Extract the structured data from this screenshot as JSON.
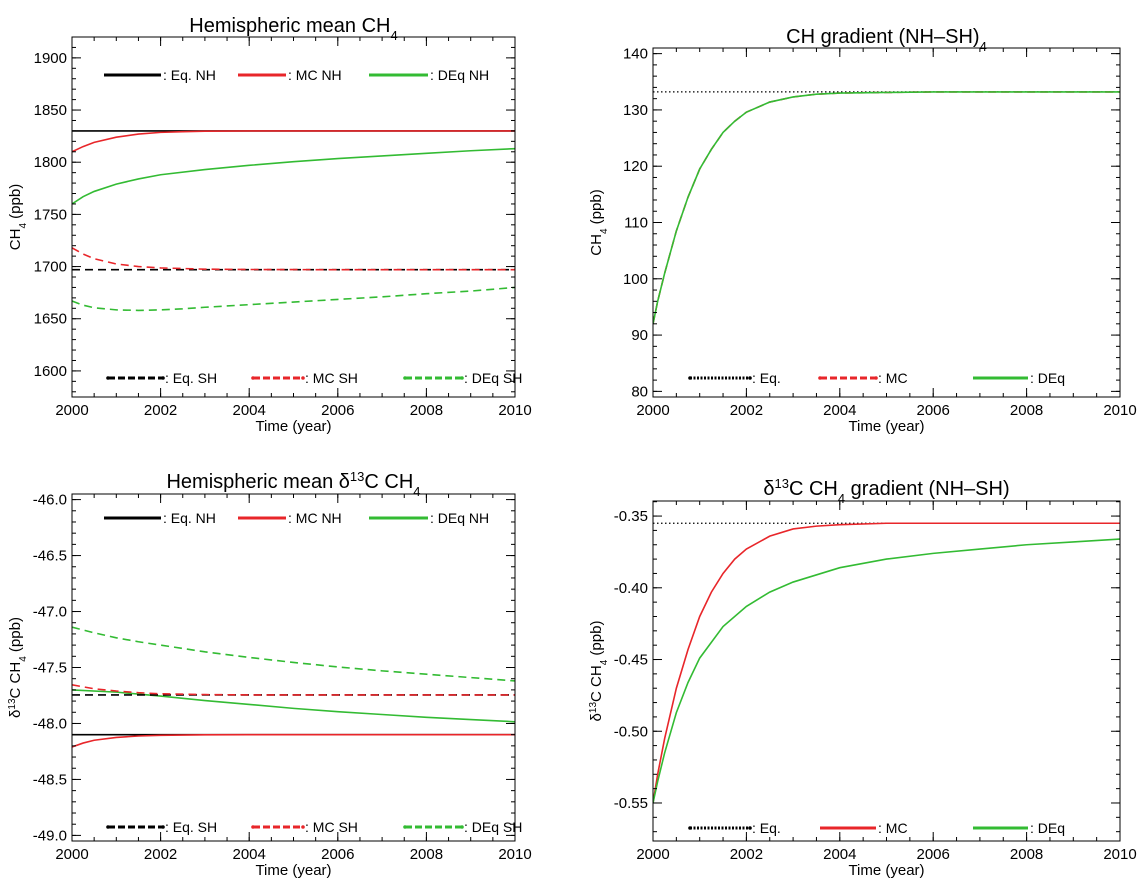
{
  "colors": {
    "eq": "#000000",
    "mc": "#e8262a",
    "deq": "#33bb33"
  },
  "chart_data": [
    {
      "type": "line",
      "title": "Hemispheric mean CH",
      "title_sub": "4",
      "xlabel": "Time (year)",
      "ylabel": "CH",
      "ylabel_sub": "4",
      "ylabel_tail": " (ppb)",
      "xlim": [
        2000,
        2010
      ],
      "ylim": [
        1575,
        1920
      ],
      "xticks": [
        2000,
        2002,
        2004,
        2006,
        2008,
        2010
      ],
      "xtick_labels": [
        "2000",
        "2002",
        "2004",
        "2006",
        "2008",
        "2010"
      ],
      "yticks": [
        1600,
        1650,
        1700,
        1750,
        1800,
        1850,
        1900
      ],
      "ytick_labels": [
        "1600",
        "1650",
        "1700",
        "1750",
        "1800",
        "1850",
        "1900"
      ],
      "series": [
        {
          "name": ": Eq. NH",
          "color": "eq",
          "dash": "solid",
          "x": [
            2000,
            2010
          ],
          "y": [
            1830,
            1830
          ]
        },
        {
          "name": ": MC NH",
          "color": "mc",
          "dash": "solid",
          "x": [
            2000,
            2000.25,
            2000.5,
            2001,
            2001.5,
            2002,
            2002.5,
            2003,
            2004,
            2005,
            2006,
            2008,
            2010
          ],
          "y": [
            1810,
            1815,
            1819,
            1824,
            1827,
            1828.6,
            1829.3,
            1829.7,
            1830,
            1830,
            1830,
            1830,
            1830
          ]
        },
        {
          "name": ": DEq NH",
          "color": "deq",
          "dash": "solid",
          "x": [
            2000,
            2000.25,
            2000.5,
            2001,
            2001.5,
            2002,
            2003,
            2004,
            2005,
            2006,
            2007,
            2008,
            2009,
            2010
          ],
          "y": [
            1760,
            1767,
            1772,
            1779,
            1784,
            1788,
            1793,
            1797,
            1800.5,
            1803.5,
            1806,
            1808.5,
            1811,
            1813
          ]
        },
        {
          "name": ": Eq. SH",
          "color": "eq",
          "dash": "dashed",
          "x": [
            2000,
            2010
          ],
          "y": [
            1697,
            1697
          ]
        },
        {
          "name": ": MC SH",
          "color": "mc",
          "dash": "dashed",
          "x": [
            2000,
            2000.25,
            2000.5,
            2001,
            2001.5,
            2002,
            2003,
            2004,
            2006,
            2008,
            2010
          ],
          "y": [
            1718,
            1712,
            1707.5,
            1702.5,
            1700,
            1698.7,
            1697.5,
            1697.2,
            1697,
            1697,
            1697
          ]
        },
        {
          "name": ": DEq SH",
          "color": "deq",
          "dash": "dashed",
          "x": [
            2000,
            2000.25,
            2000.5,
            2001,
            2001.5,
            2002,
            2002.5,
            2003,
            2004,
            2005,
            2006,
            2007,
            2008,
            2009,
            2010
          ],
          "y": [
            1667,
            1663,
            1660.5,
            1658.5,
            1658,
            1658.5,
            1659.5,
            1661,
            1663.5,
            1666,
            1668.5,
            1671,
            1674,
            1676.5,
            1680
          ]
        }
      ],
      "legend": "top and bottom rows"
    },
    {
      "type": "line",
      "title": "CH",
      "title_sub": "4",
      "title_tail": " gradient (NH–SH)",
      "xlabel": "Time (year)",
      "ylabel": "CH",
      "ylabel_sub": "4",
      "ylabel_tail": " (ppb)",
      "xlim": [
        2000,
        2010
      ],
      "ylim": [
        79,
        141
      ],
      "xticks": [
        2000,
        2002,
        2004,
        2006,
        2008,
        2010
      ],
      "xtick_labels": [
        "2000",
        "2002",
        "2004",
        "2006",
        "2008",
        "2010"
      ],
      "yticks": [
        80,
        90,
        100,
        110,
        120,
        130,
        140
      ],
      "ytick_labels": [
        "80",
        "90",
        "100",
        "110",
        "120",
        "130",
        "140"
      ],
      "series": [
        {
          "name": ": Eq.",
          "color": "eq",
          "dash": "dotted",
          "x": [
            2000,
            2010
          ],
          "y": [
            133.2,
            133.2
          ]
        },
        {
          "name": ": MC",
          "color": "mc",
          "dash": "dashed",
          "x": [
            2000,
            2000.1,
            2000.25,
            2000.5,
            2000.75,
            2001,
            2001.25,
            2001.5,
            2001.75,
            2002,
            2002.5,
            2003,
            2003.5,
            2004,
            2005,
            2006,
            2008,
            2010
          ],
          "y": [
            92,
            96,
            101,
            108.5,
            114.5,
            119.5,
            123,
            126,
            128,
            129.6,
            131.4,
            132.3,
            132.8,
            133,
            133.1,
            133.2,
            133.2,
            133.2
          ]
        },
        {
          "name": ": DEq",
          "color": "deq",
          "dash": "solid",
          "x": [
            2000,
            2000.1,
            2000.25,
            2000.5,
            2000.75,
            2001,
            2001.25,
            2001.5,
            2001.75,
            2002,
            2002.5,
            2003,
            2003.5,
            2004,
            2005,
            2006,
            2008,
            2010
          ],
          "y": [
            92,
            96,
            101,
            108.5,
            114.5,
            119.5,
            123,
            126,
            128,
            129.6,
            131.4,
            132.3,
            132.8,
            133,
            133.1,
            133.2,
            133.2,
            133.2
          ]
        }
      ],
      "legend": "bottom row"
    },
    {
      "type": "line",
      "title": "Hemispheric mean δ",
      "title_sup": "13",
      "title_tail": "C CH",
      "title_sub": "4",
      "xlabel": "Time (year)",
      "ylabel": "δ",
      "ylabel_sup": "13",
      "ylabel_mid": "C CH",
      "ylabel_sub": "4",
      "ylabel_tail": " (ppb)",
      "xlim": [
        2000,
        2010
      ],
      "ylim": [
        -49.05,
        -45.95
      ],
      "xticks": [
        2000,
        2002,
        2004,
        2006,
        2008,
        2010
      ],
      "xtick_labels": [
        "2000",
        "2002",
        "2004",
        "2006",
        "2008",
        "2010"
      ],
      "yticks": [
        -49,
        -48.5,
        -48,
        -47.5,
        -47,
        -46.5,
        -46
      ],
      "ytick_labels": [
        "-49.0",
        "-48.5",
        "-48.0",
        "-47.5",
        "-47.0",
        "-46.5",
        "-46.0"
      ],
      "series": [
        {
          "name": ": Eq. NH",
          "color": "eq",
          "dash": "solid",
          "x": [
            2000,
            2010
          ],
          "y": [
            -48.1,
            -48.1
          ]
        },
        {
          "name": ": MC NH",
          "color": "mc",
          "dash": "solid",
          "x": [
            2000,
            2000.25,
            2000.5,
            2001,
            2001.5,
            2002,
            2003,
            2004,
            2006,
            2008,
            2010
          ],
          "y": [
            -48.21,
            -48.175,
            -48.15,
            -48.125,
            -48.112,
            -48.106,
            -48.101,
            -48.1,
            -48.1,
            -48.1,
            -48.1
          ]
        },
        {
          "name": ": DEq NH",
          "color": "deq",
          "dash": "solid",
          "x": [
            2000,
            2001,
            2002,
            2003,
            2004,
            2005,
            2006,
            2007,
            2008,
            2009,
            2010
          ],
          "y": [
            -47.7,
            -47.72,
            -47.755,
            -47.795,
            -47.83,
            -47.865,
            -47.895,
            -47.92,
            -47.945,
            -47.965,
            -47.985
          ]
        },
        {
          "name": ": Eq. SH",
          "color": "eq",
          "dash": "dashed",
          "x": [
            2000,
            2010
          ],
          "y": [
            -47.745,
            -47.745
          ]
        },
        {
          "name": ": MC SH",
          "color": "mc",
          "dash": "dashed",
          "x": [
            2000,
            2000.5,
            2001,
            2001.5,
            2002,
            2003,
            2004,
            2006,
            2008,
            2010
          ],
          "y": [
            -47.655,
            -47.69,
            -47.71,
            -47.725,
            -47.735,
            -47.742,
            -47.745,
            -47.745,
            -47.745,
            -47.745
          ]
        },
        {
          "name": ": DEq SH",
          "color": "deq",
          "dash": "dashed",
          "x": [
            2000,
            2000.5,
            2001,
            2001.5,
            2002,
            2003,
            2004,
            2005,
            2006,
            2007,
            2008,
            2009,
            2010
          ],
          "y": [
            -47.14,
            -47.19,
            -47.235,
            -47.27,
            -47.3,
            -47.36,
            -47.41,
            -47.455,
            -47.495,
            -47.53,
            -47.56,
            -47.59,
            -47.62
          ]
        }
      ],
      "legend": "top and bottom rows"
    },
    {
      "type": "line",
      "title": "δ",
      "title_sup": "13",
      "title_tail": "C CH",
      "title_sub": "4",
      "title_tail2": " gradient (NH–SH)",
      "xlabel": "Time (year)",
      "ylabel": "δ",
      "ylabel_sup": "13",
      "ylabel_mid": "C CH",
      "ylabel_sub": "4",
      "ylabel_tail": " (ppb)",
      "xlim": [
        2000,
        2010
      ],
      "ylim": [
        -0.5765,
        -0.3395
      ],
      "xticks": [
        2000,
        2002,
        2004,
        2006,
        2008,
        2010
      ],
      "xtick_labels": [
        "2000",
        "2002",
        "2004",
        "2006",
        "2008",
        "2010"
      ],
      "yticks": [
        -0.55,
        -0.5,
        -0.45,
        -0.4,
        -0.35
      ],
      "ytick_labels": [
        "-0.55",
        "-0.50",
        "-0.45",
        "-0.40",
        "-0.35"
      ],
      "series": [
        {
          "name": ": Eq.",
          "color": "eq",
          "dash": "dotted",
          "x": [
            2000,
            2010
          ],
          "y": [
            -0.355,
            -0.355
          ]
        },
        {
          "name": ": MC",
          "color": "mc",
          "dash": "solid",
          "x": [
            2000,
            2000.1,
            2000.25,
            2000.5,
            2000.75,
            2001,
            2001.25,
            2001.5,
            2001.75,
            2002,
            2002.5,
            2003,
            2003.5,
            2004,
            2005,
            2006,
            2008,
            2010
          ],
          "y": [
            -0.55,
            -0.53,
            -0.505,
            -0.47,
            -0.443,
            -0.42,
            -0.403,
            -0.39,
            -0.38,
            -0.373,
            -0.364,
            -0.359,
            -0.357,
            -0.356,
            -0.355,
            -0.355,
            -0.355,
            -0.355
          ]
        },
        {
          "name": ": DEq",
          "color": "deq",
          "dash": "solid",
          "x": [
            2000,
            2000.1,
            2000.25,
            2000.5,
            2000.75,
            2001,
            2001.5,
            2002,
            2002.5,
            2003,
            2004,
            2005,
            2006,
            2007,
            2008,
            2009,
            2010
          ],
          "y": [
            -0.55,
            -0.535,
            -0.515,
            -0.487,
            -0.466,
            -0.449,
            -0.427,
            -0.413,
            -0.403,
            -0.396,
            -0.386,
            -0.38,
            -0.376,
            -0.373,
            -0.37,
            -0.368,
            -0.366
          ]
        }
      ],
      "legend": "bottom row"
    }
  ]
}
